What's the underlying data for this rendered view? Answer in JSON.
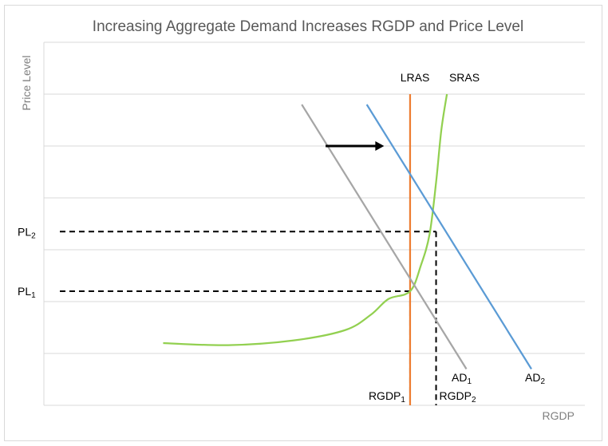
{
  "chart_data": {
    "type": "line",
    "title": "Increasing Aggregate Demand Increases RGDP and Price Level",
    "xlabel": "RGDP",
    "ylabel": "Price Level",
    "xlim": [
      0,
      100
    ],
    "ylim": [
      0,
      7
    ],
    "grid": true,
    "ygrid_values": [
      1,
      2,
      3,
      4,
      5,
      6,
      7
    ],
    "series": [
      {
        "name": "LRAS",
        "color": "#ed7d31",
        "points": [
          [
            72,
            0
          ],
          [
            72,
            6
          ]
        ]
      },
      {
        "name": "SRAS",
        "color": "#92d050",
        "points": [
          [
            15,
            1.2
          ],
          [
            25,
            1.17
          ],
          [
            35,
            1.2
          ],
          [
            45,
            1.3
          ],
          [
            55,
            1.45
          ],
          [
            62,
            1.7
          ],
          [
            67,
            2.05
          ],
          [
            70,
            2.5
          ],
          [
            72,
            2.2
          ],
          [
            75,
            2.7
          ],
          [
            77,
            3.4
          ],
          [
            78.5,
            4.5
          ],
          [
            79.5,
            5.5
          ],
          [
            80.5,
            6
          ]
        ]
      },
      {
        "name": "AD1",
        "color": "#a6a6a6",
        "points": [
          [
            47,
            5.8
          ],
          [
            85,
            0.7
          ]
        ]
      },
      {
        "name": "AD2",
        "color": "#5b9bd5",
        "points": [
          [
            62,
            5.8
          ],
          [
            100,
            0.7
          ]
        ]
      }
    ],
    "annotations": {
      "shift_arrow": {
        "from": [
          52.5,
          5
        ],
        "to": [
          66,
          5
        ],
        "color": "#000000"
      },
      "pl1": {
        "label": "PL",
        "sub": "1",
        "value": 2.2
      },
      "pl2": {
        "label": "PL",
        "sub": "2",
        "value": 3.35
      },
      "rgdp1": {
        "label": "RGDP",
        "sub": "1",
        "value": 72
      },
      "rgdp2": {
        "label": "RGDP",
        "sub": "2",
        "value": 78
      }
    },
    "line_labels": {
      "lras": "LRAS",
      "sras": "SRAS",
      "ad1": {
        "label": "AD",
        "sub": "1"
      },
      "ad2": {
        "label": "AD",
        "sub": "2"
      }
    }
  }
}
